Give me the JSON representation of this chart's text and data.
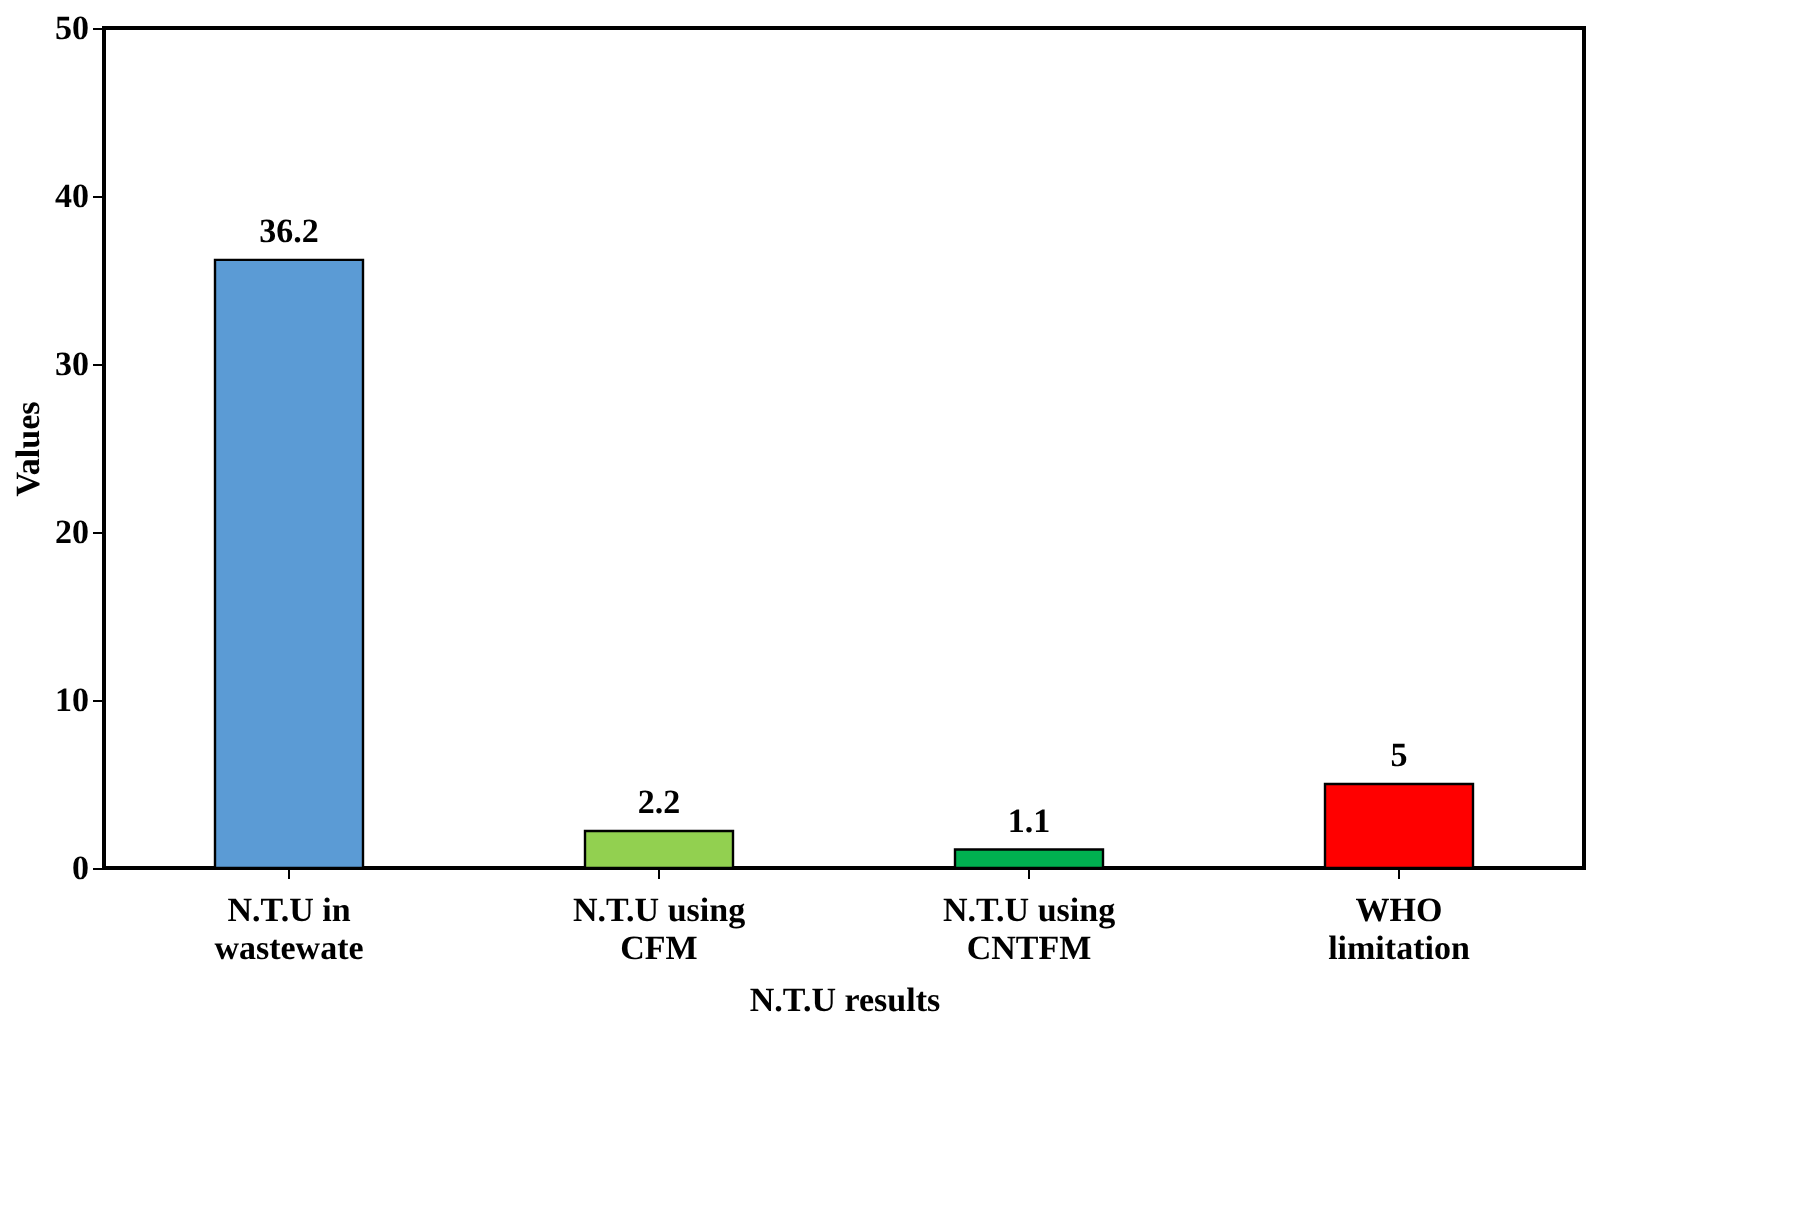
{
  "chart_data": {
    "type": "bar",
    "xlabel": "N.T.U  results",
    "ylabel": "Values",
    "categories": [
      "N.T.U in\nwastewate",
      "N.T.U using\nCFM",
      "N.T.U using\nCNTFM",
      "WHO\nlimitation"
    ],
    "values": [
      36.2,
      2.2,
      1.1,
      5
    ],
    "colors": [
      "#5b9bd5",
      "#92d050",
      "#00b050",
      "#ff0000"
    ],
    "ylim": [
      0,
      50
    ],
    "yticks": [
      0,
      10,
      20,
      30,
      40,
      50
    ],
    "grid": false,
    "data_labels": true
  }
}
